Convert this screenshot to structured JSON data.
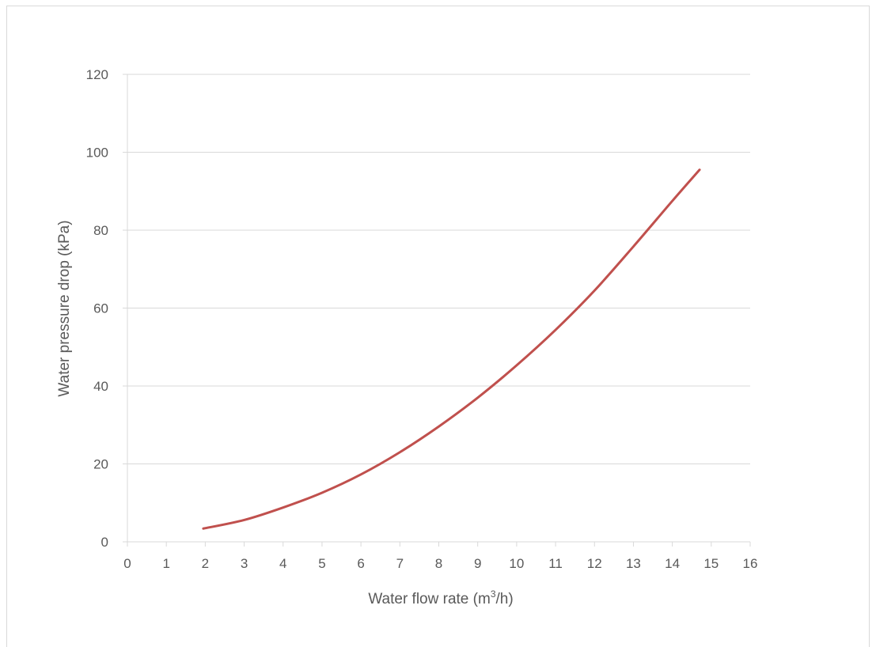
{
  "chart_data": {
    "type": "line",
    "title": "",
    "xlabel": {
      "main": "Water flow rate (m",
      "sup": "3",
      "tail": "/h)"
    },
    "ylabel": "Water pressure drop (kPa)",
    "xlim": [
      0,
      16
    ],
    "ylim": [
      0,
      120
    ],
    "x_ticks": [
      "0",
      "1",
      "2",
      "3",
      "4",
      "5",
      "6",
      "7",
      "8",
      "9",
      "10",
      "11",
      "12",
      "13",
      "14",
      "15",
      "16"
    ],
    "y_ticks": [
      "0",
      "20",
      "40",
      "60",
      "80",
      "100",
      "120"
    ],
    "grid": "horizontal",
    "legend": "none",
    "series": [
      {
        "color": "#c0504d",
        "points": [
          [
            1.95,
            3.4
          ],
          [
            3.0,
            5.6
          ],
          [
            4.0,
            8.8
          ],
          [
            5.0,
            12.6
          ],
          [
            6.0,
            17.3
          ],
          [
            7.0,
            23.0
          ],
          [
            8.0,
            29.6
          ],
          [
            9.0,
            37.0
          ],
          [
            10.0,
            45.3
          ],
          [
            11.0,
            54.4
          ],
          [
            12.0,
            64.5
          ],
          [
            13.0,
            75.8
          ],
          [
            14.0,
            87.5
          ],
          [
            14.7,
            95.5
          ]
        ]
      }
    ]
  }
}
